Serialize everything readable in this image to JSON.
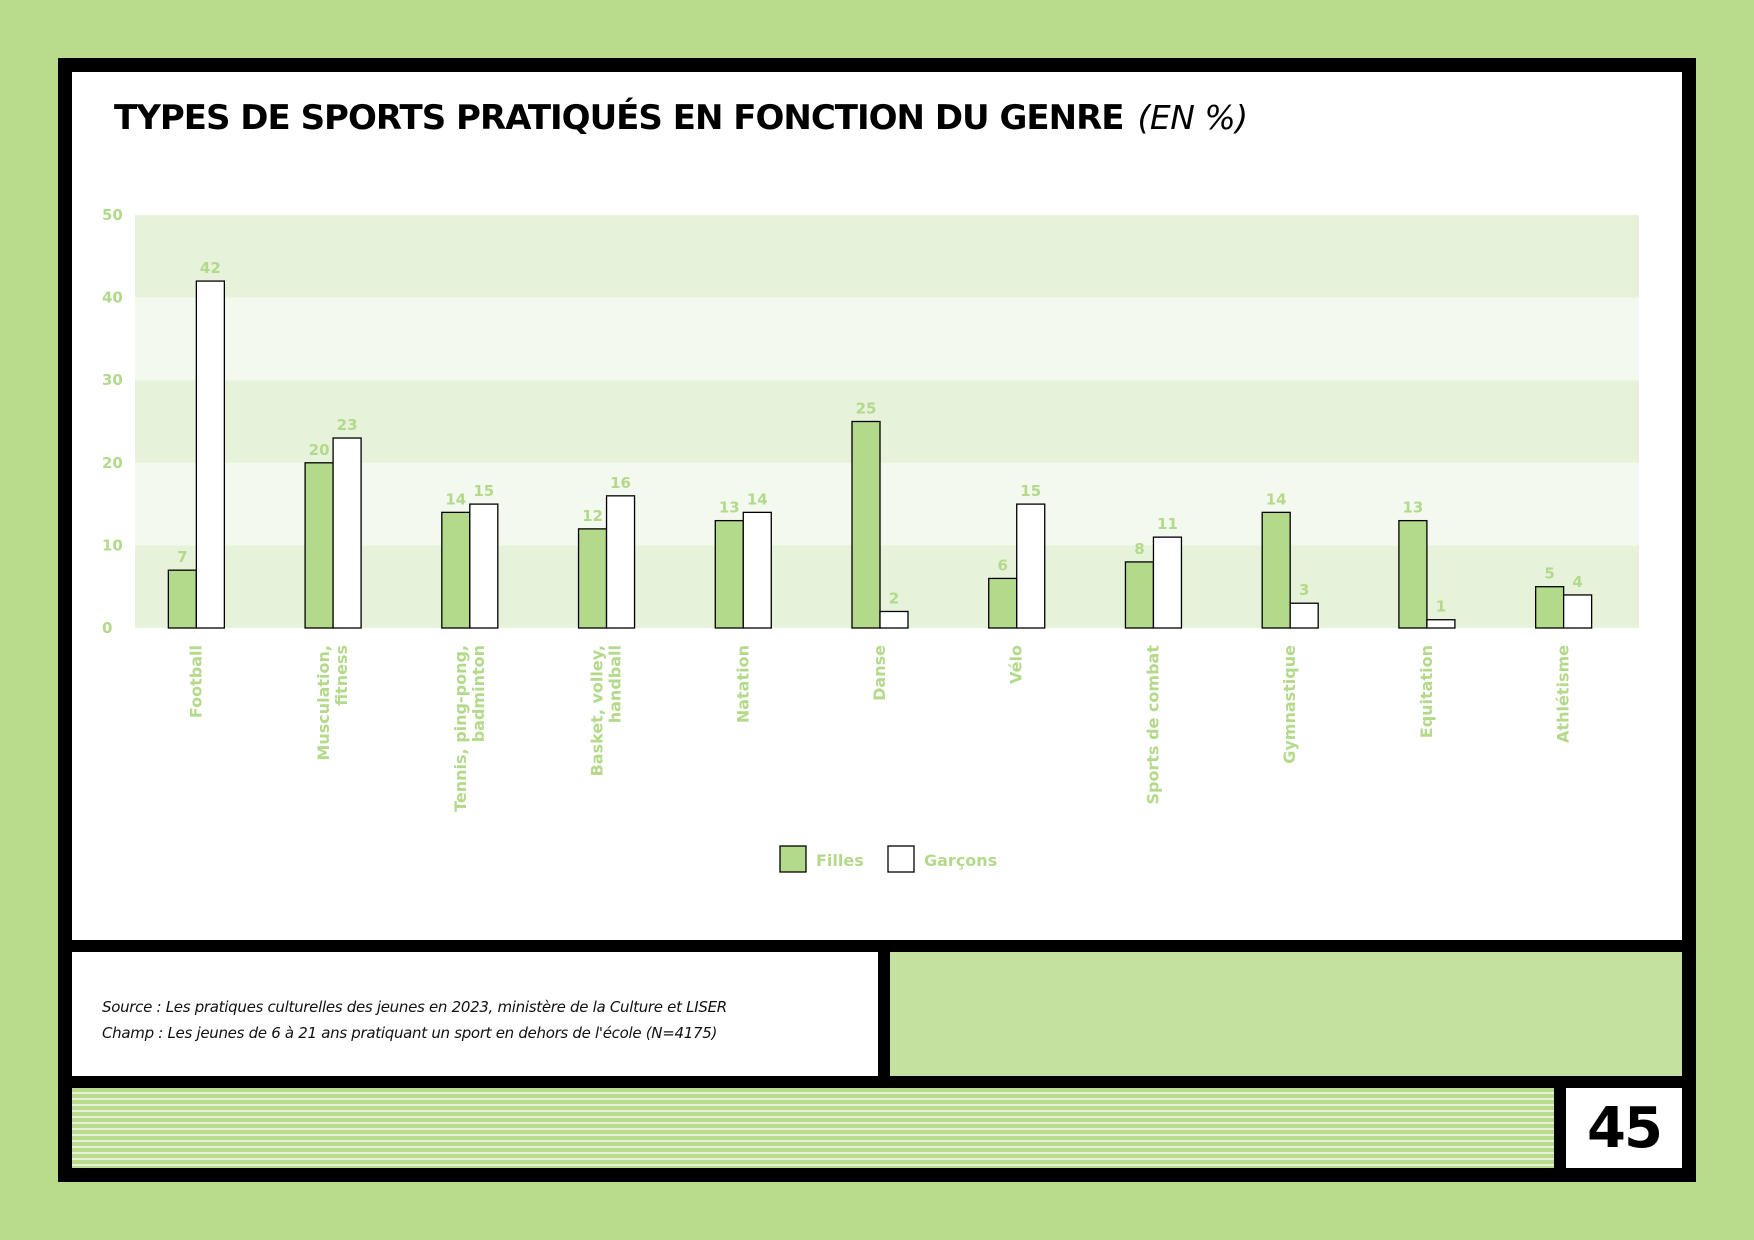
{
  "title": "TYPES DE SPORTS PRATIQUÉS EN FONCTION DU GENRE",
  "unit": "(EN %)",
  "colors": {
    "background": "#b9db8c",
    "frame": "#000000",
    "filles": "#b3d98a",
    "garcons": "#ffffff",
    "label_green": "#b3d98a",
    "band_dark": "#e6f2da",
    "band_light": "#f3f9ee"
  },
  "chart_data": {
    "type": "bar",
    "categories": [
      "Football",
      "Musculation, fitness",
      "Tennis, ping-pong, badminton",
      "Basket, volley, handball",
      "Natation",
      "Danse",
      "Vélo",
      "Sports de combat",
      "Gymnastique",
      "Equitation",
      "Athlétisme"
    ],
    "category_lines": [
      [
        "Football"
      ],
      [
        "Musculation,",
        "fitness"
      ],
      [
        "Tennis, ping-pong,",
        "badminton"
      ],
      [
        "Basket, volley,",
        "handball"
      ],
      [
        "Natation"
      ],
      [
        "Danse"
      ],
      [
        "Vélo"
      ],
      [
        "Sports de combat"
      ],
      [
        "Gymnastique"
      ],
      [
        "Equitation"
      ],
      [
        "Athlétisme"
      ]
    ],
    "series": [
      {
        "name": "Filles",
        "values": [
          7,
          20,
          14,
          12,
          13,
          25,
          6,
          8,
          14,
          13,
          5
        ]
      },
      {
        "name": "Garçons",
        "values": [
          42,
          23,
          15,
          16,
          14,
          2,
          15,
          11,
          3,
          1,
          4
        ]
      }
    ],
    "ylim": [
      0,
      50
    ],
    "yticks": [
      0,
      10,
      20,
      30,
      40,
      50
    ],
    "xlabel": "",
    "ylabel": "",
    "grid": "alternating horizontal bands",
    "legend_position": "bottom-center"
  },
  "source": {
    "line1": "Source : Les pratiques culturelles des jeunes en 2023, ministère de la Culture et LISER",
    "line2": "Champ : Les jeunes de 6 à 21 ans pratiquant un sport en dehors de l'école (N=4175)"
  },
  "page_number": "45"
}
